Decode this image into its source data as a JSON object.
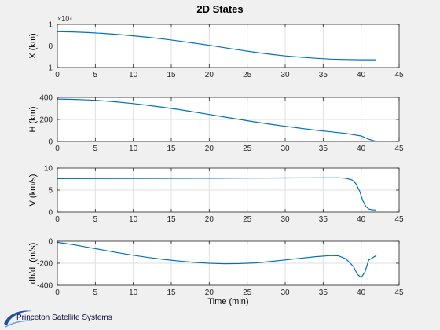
{
  "title": "2D States",
  "footer": {
    "text": "Princeton Satellite Systems",
    "logo_icon": "pss-swoosh-logo-icon"
  },
  "colors": {
    "line": "#0072bd",
    "axes_bg": "#ffffff",
    "grid": "#dfdfdf",
    "figure_bg": "#f0f0f0"
  },
  "chart_data": [
    {
      "type": "line",
      "ylabel": "X (km)",
      "xlim": [
        0,
        45
      ],
      "ylim": [
        -1,
        1
      ],
      "xticks": [
        0,
        5,
        10,
        15,
        20,
        25,
        30,
        35,
        40,
        45
      ],
      "yticks": [
        -1,
        0,
        1
      ],
      "yexponent": "×10⁴",
      "grid": true,
      "x": [
        0,
        2,
        4,
        6,
        8,
        10,
        12,
        14,
        16,
        18,
        20,
        22,
        24,
        26,
        28,
        30,
        32,
        34,
        36,
        38,
        40,
        42
      ],
      "y": [
        0.66,
        0.65,
        0.62,
        0.58,
        0.53,
        0.47,
        0.4,
        0.32,
        0.23,
        0.13,
        0.03,
        -0.08,
        -0.19,
        -0.29,
        -0.38,
        -0.46,
        -0.52,
        -0.57,
        -0.61,
        -0.63,
        -0.64,
        -0.64
      ]
    },
    {
      "type": "line",
      "ylabel": "H (km)",
      "xlim": [
        0,
        45
      ],
      "ylim": [
        0,
        400
      ],
      "xticks": [
        0,
        5,
        10,
        15,
        20,
        25,
        30,
        35,
        40,
        45
      ],
      "yticks": [
        0,
        200,
        400
      ],
      "grid": true,
      "x": [
        0,
        2,
        4,
        6,
        8,
        10,
        12,
        14,
        16,
        18,
        20,
        22,
        24,
        26,
        28,
        30,
        32,
        34,
        36,
        38,
        40,
        41,
        42
      ],
      "y": [
        385,
        382,
        377,
        369,
        358,
        344,
        328,
        310,
        290,
        268,
        245,
        222,
        200,
        178,
        157,
        138,
        120,
        103,
        88,
        73,
        50,
        20,
        0
      ]
    },
    {
      "type": "line",
      "ylabel": "V (km/s)",
      "xlim": [
        0,
        45
      ],
      "ylim": [
        0,
        10
      ],
      "xticks": [
        0,
        5,
        10,
        15,
        20,
        25,
        30,
        35,
        40,
        45
      ],
      "yticks": [
        0,
        5,
        10
      ],
      "grid": true,
      "x": [
        0,
        5,
        10,
        15,
        20,
        25,
        30,
        35,
        37,
        38,
        38.8,
        39.3,
        39.8,
        40.2,
        40.6,
        41,
        41.5,
        42
      ],
      "y": [
        7.6,
        7.62,
        7.64,
        7.67,
        7.7,
        7.73,
        7.76,
        7.8,
        7.8,
        7.7,
        7.3,
        6.5,
        4.8,
        2.7,
        1.3,
        0.7,
        0.5,
        0.5
      ]
    },
    {
      "type": "line",
      "ylabel": "dh/dt (m/s)",
      "xlabel": "Time (min)",
      "xlim": [
        0,
        45
      ],
      "ylim": [
        -400,
        0
      ],
      "xticks": [
        0,
        5,
        10,
        15,
        20,
        25,
        30,
        35,
        40,
        45
      ],
      "yticks": [
        -400,
        -200,
        0
      ],
      "grid": true,
      "x": [
        0,
        2,
        4,
        6,
        8,
        10,
        12,
        14,
        16,
        18,
        20,
        22,
        24,
        26,
        28,
        30,
        32,
        34,
        36,
        37,
        38,
        39,
        39.5,
        40,
        40.5,
        41,
        41.5,
        42
      ],
      "y": [
        -10,
        -30,
        -55,
        -80,
        -105,
        -127,
        -148,
        -165,
        -180,
        -192,
        -200,
        -204,
        -203,
        -197,
        -185,
        -170,
        -155,
        -140,
        -130,
        -132,
        -160,
        -230,
        -300,
        -330,
        -280,
        -170,
        -150,
        -130
      ]
    }
  ]
}
